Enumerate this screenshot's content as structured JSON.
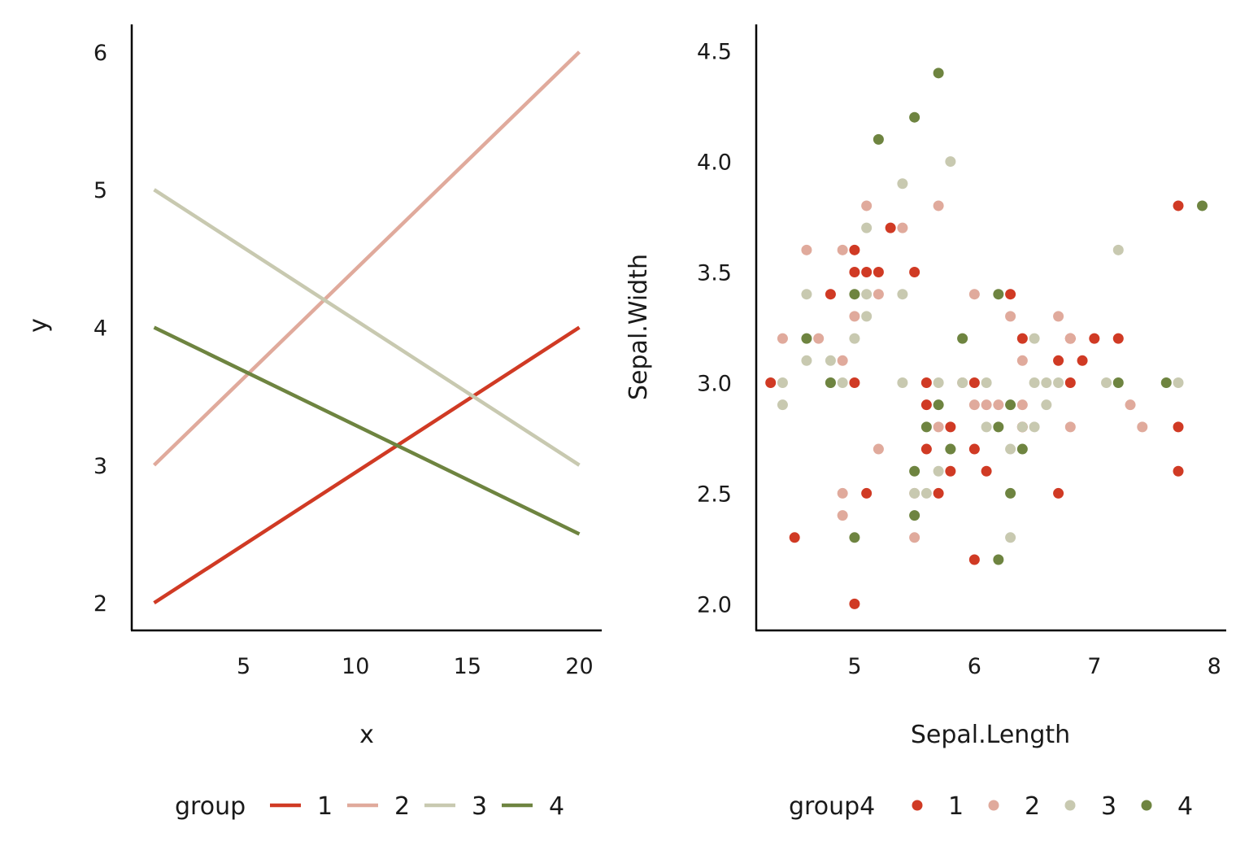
{
  "chart_data": [
    {
      "type": "line",
      "xlabel": "x",
      "ylabel": "y",
      "xlim": [
        0,
        21
      ],
      "ylim": [
        1.8,
        6.2
      ],
      "xticks": [
        5,
        10,
        15,
        20
      ],
      "yticks": [
        2,
        3,
        4,
        5,
        6
      ],
      "grid": false,
      "legend": {
        "title": "group",
        "position": "bottom",
        "entries": [
          "1",
          "2",
          "3",
          "4"
        ]
      },
      "series": [
        {
          "name": "1",
          "color": "#d03a24",
          "x": [
            1,
            20
          ],
          "y": [
            2,
            4
          ]
        },
        {
          "name": "2",
          "color": "#e0aa9c",
          "x": [
            1,
            20
          ],
          "y": [
            3,
            6
          ]
        },
        {
          "name": "3",
          "color": "#c8c9b0",
          "x": [
            1,
            20
          ],
          "y": [
            5,
            3
          ]
        },
        {
          "name": "4",
          "color": "#6e8440",
          "x": [
            1,
            20
          ],
          "y": [
            4,
            2.5
          ]
        }
      ]
    },
    {
      "type": "scatter",
      "xlabel": "Sepal.Length",
      "ylabel": "Sepal.Width",
      "xlim": [
        4.18,
        8.1
      ],
      "ylim": [
        1.88,
        4.62
      ],
      "xticks": [
        5,
        6,
        7,
        8
      ],
      "yticks": [
        "2.0",
        "2.5",
        "3.0",
        "3.5",
        "4.0",
        "4.5"
      ],
      "grid": false,
      "legend": {
        "title": "group4",
        "position": "bottom",
        "entries": [
          "1",
          "2",
          "3",
          "4"
        ]
      },
      "series": [
        {
          "name": "1",
          "color": "#d03a24",
          "points": [
            [
              4.3,
              3.0
            ],
            [
              4.5,
              2.3
            ],
            [
              4.8,
              3.4
            ],
            [
              5.0,
              3.5
            ],
            [
              5.0,
              3.6
            ],
            [
              5.0,
              3.0
            ],
            [
              5.0,
              2.0
            ],
            [
              5.1,
              3.5
            ],
            [
              5.1,
              2.5
            ],
            [
              5.2,
              3.5
            ],
            [
              5.3,
              3.7
            ],
            [
              5.5,
              3.5
            ],
            [
              5.6,
              3.0
            ],
            [
              5.6,
              2.9
            ],
            [
              5.6,
              2.7
            ],
            [
              5.7,
              2.5
            ],
            [
              5.8,
              2.8
            ],
            [
              5.8,
              2.6
            ],
            [
              6.0,
              3.0
            ],
            [
              6.0,
              2.7
            ],
            [
              6.0,
              2.2
            ],
            [
              6.1,
              2.6
            ],
            [
              6.3,
              3.4
            ],
            [
              6.4,
              3.2
            ],
            [
              6.4,
              2.8
            ],
            [
              6.7,
              3.1
            ],
            [
              6.7,
              2.5
            ],
            [
              6.8,
              3.2
            ],
            [
              6.8,
              3.0
            ],
            [
              6.9,
              3.1
            ],
            [
              7.0,
              3.2
            ],
            [
              7.2,
              3.2
            ],
            [
              7.7,
              3.8
            ],
            [
              7.7,
              2.8
            ],
            [
              7.7,
              2.6
            ]
          ]
        },
        {
          "name": "2",
          "color": "#e0aa9c",
          "points": [
            [
              4.4,
              3.2
            ],
            [
              4.6,
              3.6
            ],
            [
              4.7,
              3.2
            ],
            [
              4.9,
              3.6
            ],
            [
              4.9,
              3.1
            ],
            [
              4.9,
              2.5
            ],
            [
              4.9,
              2.4
            ],
            [
              5.0,
              3.3
            ],
            [
              5.1,
              3.8
            ],
            [
              5.2,
              3.4
            ],
            [
              5.2,
              2.7
            ],
            [
              5.4,
              3.7
            ],
            [
              5.5,
              2.5
            ],
            [
              5.5,
              2.3
            ],
            [
              5.7,
              3.8
            ],
            [
              5.7,
              2.8
            ],
            [
              5.9,
              3.0
            ],
            [
              6.0,
              3.4
            ],
            [
              6.0,
              2.9
            ],
            [
              6.1,
              2.9
            ],
            [
              6.2,
              2.9
            ],
            [
              6.3,
              3.3
            ],
            [
              6.4,
              3.1
            ],
            [
              6.4,
              2.9
            ],
            [
              6.7,
              3.3
            ],
            [
              6.8,
              3.2
            ],
            [
              6.8,
              2.8
            ],
            [
              7.3,
              2.9
            ],
            [
              7.4,
              2.8
            ]
          ]
        },
        {
          "name": "3",
          "color": "#c8c9b0",
          "points": [
            [
              4.4,
              3.0
            ],
            [
              4.4,
              2.9
            ],
            [
              4.6,
              3.4
            ],
            [
              4.6,
              3.1
            ],
            [
              4.8,
              3.1
            ],
            [
              4.8,
              3.0
            ],
            [
              4.9,
              3.0
            ],
            [
              5.0,
              3.2
            ],
            [
              5.1,
              3.7
            ],
            [
              5.1,
              3.4
            ],
            [
              5.1,
              3.3
            ],
            [
              5.4,
              3.9
            ],
            [
              5.4,
              3.4
            ],
            [
              5.4,
              3.0
            ],
            [
              5.5,
              2.5
            ],
            [
              5.6,
              2.5
            ],
            [
              5.7,
              3.0
            ],
            [
              5.7,
              2.6
            ],
            [
              5.8,
              4.0
            ],
            [
              5.8,
              2.7
            ],
            [
              5.9,
              3.0
            ],
            [
              6.1,
              3.0
            ],
            [
              6.1,
              2.8
            ],
            [
              6.3,
              2.7
            ],
            [
              6.3,
              2.3
            ],
            [
              6.4,
              2.8
            ],
            [
              6.5,
              3.2
            ],
            [
              6.5,
              3.0
            ],
            [
              6.5,
              2.8
            ],
            [
              6.6,
              3.0
            ],
            [
              6.6,
              2.9
            ],
            [
              6.7,
              3.0
            ],
            [
              7.1,
              3.0
            ],
            [
              7.2,
              3.6
            ],
            [
              7.7,
              3.0
            ]
          ]
        },
        {
          "name": "4",
          "color": "#6e8440",
          "points": [
            [
              4.6,
              3.2
            ],
            [
              4.8,
              3.0
            ],
            [
              5.0,
              3.4
            ],
            [
              5.0,
              2.3
            ],
            [
              5.2,
              4.1
            ],
            [
              5.5,
              4.2
            ],
            [
              5.5,
              2.6
            ],
            [
              5.5,
              2.4
            ],
            [
              5.6,
              2.8
            ],
            [
              5.7,
              4.4
            ],
            [
              5.7,
              2.9
            ],
            [
              5.8,
              2.7
            ],
            [
              5.9,
              3.2
            ],
            [
              6.2,
              3.4
            ],
            [
              6.2,
              2.8
            ],
            [
              6.2,
              2.2
            ],
            [
              6.3,
              2.9
            ],
            [
              6.3,
              2.5
            ],
            [
              6.4,
              2.7
            ],
            [
              7.2,
              3.0
            ],
            [
              7.6,
              3.0
            ],
            [
              7.9,
              3.8
            ]
          ]
        }
      ]
    }
  ]
}
